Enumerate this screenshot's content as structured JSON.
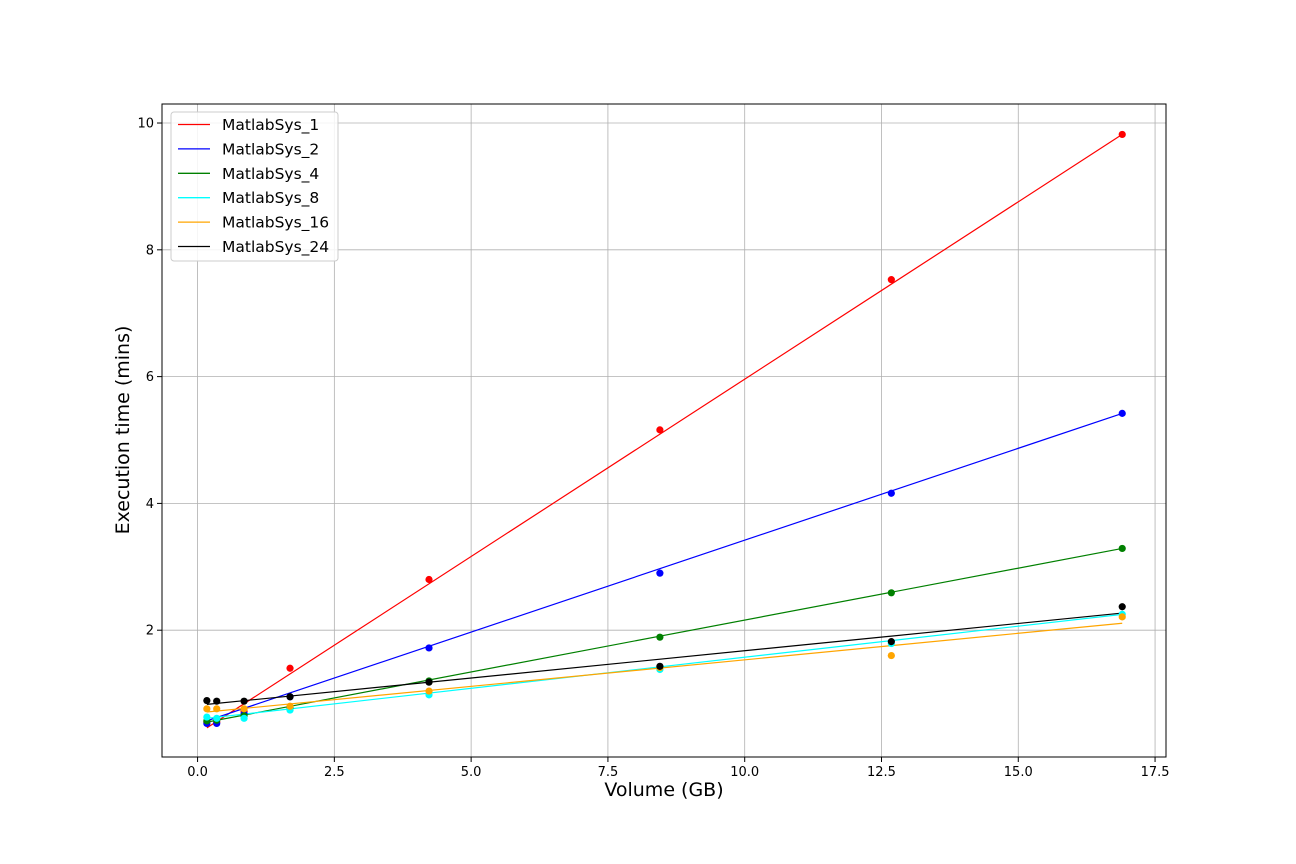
{
  "chart_data": {
    "type": "scatter",
    "title": "",
    "xlabel": "Volume (GB)",
    "ylabel": "Execution time (mins)",
    "xlim": [
      -0.65,
      17.7
    ],
    "ylim": [
      0,
      10.3
    ],
    "xticks": [
      0.0,
      2.5,
      5.0,
      7.5,
      10.0,
      12.5,
      15.0,
      17.5
    ],
    "xtick_labels": [
      "0.0",
      "2.5",
      "5.0",
      "7.5",
      "10.0",
      "12.5",
      "15.0",
      "17.5"
    ],
    "yticks": [
      2,
      4,
      6,
      8,
      10
    ],
    "ytick_labels": [
      "2",
      "4",
      "6",
      "8",
      "10"
    ],
    "grid": true,
    "legend_position": "top-left",
    "x": [
      0.17,
      0.35,
      0.85,
      1.69,
      4.23,
      8.45,
      12.68,
      16.9
    ],
    "series": [
      {
        "name": "MatlabSys_1",
        "color": "#ff0000",
        "values": [
          0.55,
          0.55,
          0.72,
          1.4,
          2.8,
          5.16,
          7.53,
          9.82
        ],
        "fit": [
          0.46,
          9.82
        ]
      },
      {
        "name": "MatlabSys_2",
        "color": "#0000ff",
        "values": [
          0.53,
          0.53,
          0.68,
          0.95,
          1.72,
          2.9,
          4.16,
          5.42
        ],
        "fit": [
          0.57,
          5.42
        ]
      },
      {
        "name": "MatlabSys_4",
        "color": "#008000",
        "values": [
          0.57,
          0.58,
          0.65,
          0.78,
          1.2,
          1.89,
          2.59,
          3.29
        ],
        "fit": [
          0.55,
          3.29
        ]
      },
      {
        "name": "MatlabSys_8",
        "color": "#00ffff",
        "values": [
          0.63,
          0.61,
          0.61,
          0.74,
          0.98,
          1.38,
          1.79,
          2.25
        ],
        "fit": [
          0.61,
          2.25
        ]
      },
      {
        "name": "MatlabSys_16",
        "color": "#ffa500",
        "values": [
          0.76,
          0.76,
          0.76,
          0.8,
          1.04,
          1.41,
          1.6,
          2.21
        ],
        "fit": [
          0.71,
          2.11
        ]
      },
      {
        "name": "MatlabSys_24",
        "color": "#000000",
        "values": [
          0.89,
          0.88,
          0.88,
          0.95,
          1.18,
          1.43,
          1.82,
          2.37
        ],
        "fit": [
          0.83,
          2.27
        ]
      }
    ]
  }
}
